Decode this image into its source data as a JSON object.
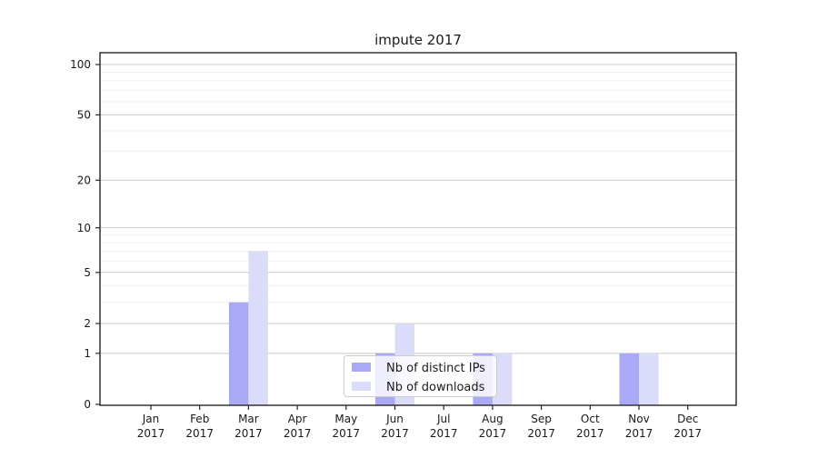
{
  "chart_data": {
    "type": "bar",
    "title": "impute 2017",
    "categories": [
      "Jan",
      "Feb",
      "Mar",
      "Apr",
      "May",
      "Jun",
      "Jul",
      "Aug",
      "Sep",
      "Oct",
      "Nov",
      "Dec"
    ],
    "category_year": "2017",
    "series": [
      {
        "name": "Nb of distinct IPs",
        "color": "#a9a9f5",
        "values": [
          0,
          0,
          3,
          0,
          0,
          1,
          0,
          1,
          0,
          0,
          1,
          0
        ]
      },
      {
        "name": "Nb of downloads",
        "color": "#dbdbfa",
        "values": [
          0,
          0,
          7,
          0,
          0,
          2,
          0,
          1,
          0,
          0,
          1,
          0
        ]
      }
    ],
    "y_axis": {
      "scale": "log1p",
      "tick_labels": [
        "0",
        "1",
        "2",
        "5",
        "10",
        "20",
        "50",
        "100"
      ],
      "tick_values": [
        0,
        1,
        2,
        5,
        10,
        20,
        50,
        100
      ],
      "minor_gridlines": [
        3,
        4,
        6,
        7,
        8,
        9,
        30,
        40,
        60,
        70,
        80,
        90
      ],
      "labeled_gridlines": [
        1,
        2,
        5,
        10,
        20,
        50,
        100
      ],
      "max": 120
    },
    "legend_position": "lower-center-inside",
    "colors": {
      "grid_minor": "#efefef",
      "grid_labeled": "#c9c9c9",
      "spine": "#000000",
      "legend_border": "#cccccc",
      "legend_bg": "rgba(255,255,255,0.8)"
    }
  }
}
